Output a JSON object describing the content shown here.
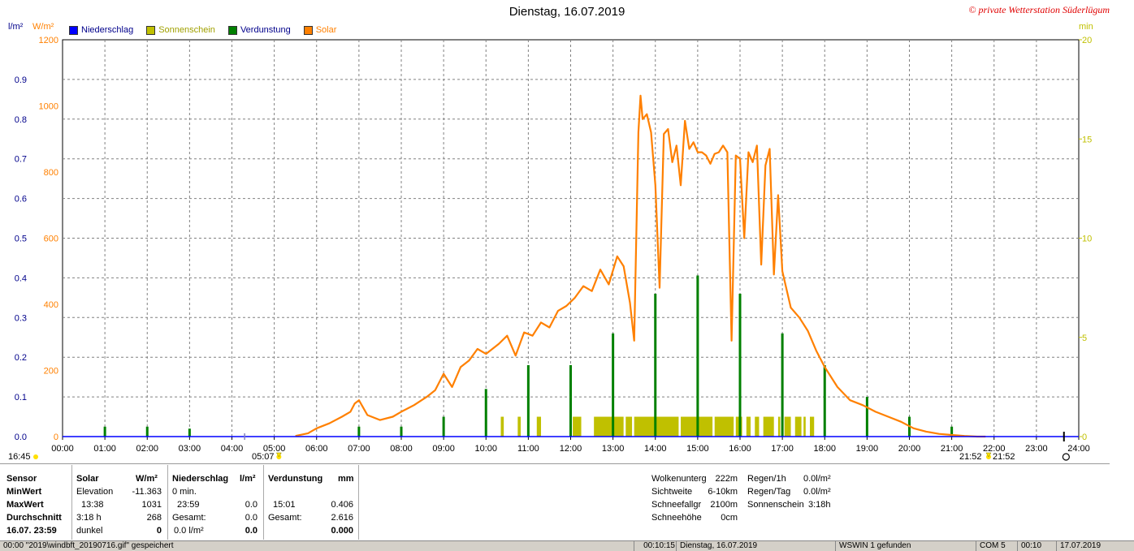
{
  "header": {
    "title": "Dienstag, 16.07.2019",
    "copyright": "© private Wetterstation Süderlügum"
  },
  "units": {
    "left1": "l/m²",
    "left2": "W/m²",
    "right": "min"
  },
  "legend": [
    {
      "label": "Niederschlag",
      "color": "#0000ff"
    },
    {
      "label": "Sonnenschein",
      "color": "#c0c000"
    },
    {
      "label": "Verdunstung",
      "color": "#008000"
    },
    {
      "label": "Solar",
      "color": "#ff8000"
    }
  ],
  "chart_data": {
    "type": "line",
    "x_ticks": [
      "00:00",
      "01:00",
      "02:00",
      "03:00",
      "04:00",
      "05:00",
      "06:00",
      "07:00",
      "08:00",
      "09:00",
      "10:00",
      "11:00",
      "12:00",
      "13:00",
      "14:00",
      "15:00",
      "16:00",
      "17:00",
      "18:00",
      "19:00",
      "20:00",
      "21:00",
      "22:00",
      "23:00",
      "24:00"
    ],
    "left_axis_precip": {
      "ticks": [
        "0.0",
        "0.1",
        "0.2",
        "0.3",
        "0.4",
        "0.5",
        "0.6",
        "0.7",
        "0.8",
        "0.9"
      ],
      "range": [
        0,
        1.0
      ]
    },
    "left_axis_solar": {
      "ticks": [
        "0",
        "200",
        "400",
        "600",
        "800",
        "1000",
        "1200"
      ],
      "range": [
        0,
        1200
      ]
    },
    "right_axis_min": {
      "ticks": [
        "0",
        "5",
        "10",
        "15",
        "20"
      ],
      "range": [
        0,
        20
      ]
    },
    "series": [
      {
        "name": "Solar",
        "unit": "W/m²",
        "color": "#ff8000",
        "x_hours": [
          5.5,
          5.8,
          6.0,
          6.3,
          6.6,
          6.8,
          6.9,
          7.0,
          7.2,
          7.5,
          7.8,
          8.0,
          8.3,
          8.6,
          8.8,
          9.0,
          9.2,
          9.4,
          9.6,
          9.8,
          10.0,
          10.3,
          10.5,
          10.7,
          10.9,
          11.1,
          11.3,
          11.5,
          11.7,
          11.9,
          12.1,
          12.3,
          12.5,
          12.7,
          12.9,
          13.1,
          13.25,
          13.4,
          13.5,
          13.6,
          13.65,
          13.7,
          13.8,
          13.9,
          14.0,
          14.1,
          14.2,
          14.3,
          14.4,
          14.5,
          14.6,
          14.7,
          14.8,
          14.9,
          15.0,
          15.1,
          15.2,
          15.3,
          15.4,
          15.5,
          15.6,
          15.7,
          15.8,
          15.9,
          16.0,
          16.1,
          16.2,
          16.3,
          16.4,
          16.5,
          16.6,
          16.7,
          16.8,
          16.9,
          17.0,
          17.2,
          17.4,
          17.6,
          17.8,
          18.0,
          18.3,
          18.6,
          18.9,
          19.2,
          19.5,
          19.8,
          20.1,
          20.4,
          20.7,
          21.0,
          21.3,
          21.6,
          21.8
        ],
        "values": [
          2,
          10,
          25,
          40,
          60,
          75,
          100,
          110,
          65,
          50,
          60,
          75,
          95,
          120,
          140,
          190,
          150,
          210,
          230,
          265,
          250,
          280,
          305,
          245,
          315,
          305,
          345,
          330,
          380,
          395,
          420,
          455,
          440,
          505,
          460,
          545,
          515,
          405,
          290,
          920,
          1031,
          960,
          975,
          920,
          760,
          450,
          915,
          930,
          830,
          880,
          760,
          955,
          870,
          890,
          860,
          860,
          850,
          825,
          855,
          860,
          880,
          860,
          290,
          850,
          840,
          600,
          860,
          830,
          880,
          520,
          820,
          870,
          490,
          730,
          500,
          390,
          360,
          320,
          260,
          210,
          150,
          110,
          95,
          75,
          60,
          45,
          25,
          15,
          8,
          5,
          2,
          0,
          0
        ]
      },
      {
        "name": "Verdunstung",
        "unit": "mm",
        "color": "#008000",
        "x_hours": [
          1.0,
          2.0,
          3.0,
          7.0,
          8.0,
          9.0,
          10.0,
          11.0,
          12.0,
          13.0,
          14.0,
          15.0,
          16.0,
          17.0,
          18.0,
          19.0,
          20.0,
          21.0
        ],
        "values": [
          0.025,
          0.025,
          0.02,
          0.025,
          0.025,
          0.05,
          0.12,
          0.18,
          0.18,
          0.26,
          0.36,
          0.406,
          0.36,
          0.26,
          0.18,
          0.1,
          0.05,
          0.025
        ]
      },
      {
        "name": "Sonnenschein",
        "unit": "min",
        "color": "#c0c000",
        "intervals": [
          [
            10.35,
            10.42
          ],
          [
            10.75,
            10.82
          ],
          [
            11.2,
            11.3
          ],
          [
            12.05,
            12.25
          ],
          [
            12.55,
            13.25
          ],
          [
            13.3,
            13.45
          ],
          [
            13.5,
            14.55
          ],
          [
            14.6,
            15.35
          ],
          [
            15.4,
            15.85
          ],
          [
            15.9,
            16.05
          ],
          [
            16.15,
            16.25
          ],
          [
            16.35,
            16.45
          ],
          [
            16.55,
            16.8
          ],
          [
            16.9,
            16.95
          ],
          [
            17.05,
            17.2
          ],
          [
            17.3,
            17.45
          ],
          [
            17.5,
            17.55
          ],
          [
            17.65,
            17.75
          ]
        ],
        "height_min": 1
      }
    ],
    "markers": {
      "left_time": "16:45",
      "sunrise": "05:07",
      "sunset_a": "21:52",
      "sunset_b": "21:52"
    }
  },
  "table": {
    "headers": {
      "sensor": "Sensor",
      "solar": "Solar",
      "solar_unit": "W/m²",
      "precip": "Niederschlag",
      "precip_unit": "l/m²",
      "evap": "Verdunstung",
      "evap_unit": "mm"
    },
    "rows": {
      "min": {
        "label": "MinWert",
        "solar_label": "Elevation",
        "solar_val": "-11.363",
        "precip_label": "0 min.",
        "precip_val": "",
        "evap_label": "",
        "evap_val": ""
      },
      "max": {
        "label": "MaxWert",
        "solar_label": "13:38",
        "solar_val": "1031",
        "precip_label": "23:59",
        "precip_val": "0.0",
        "evap_label": "15:01",
        "evap_val": "0.406"
      },
      "avg": {
        "label": "Durchschnitt",
        "solar_label": "3:18 h",
        "solar_val": "268",
        "precip_label": "Gesamt:",
        "precip_val": "0.0",
        "evap_label": "Gesamt:",
        "evap_val": "2.616"
      },
      "now": {
        "label": "16.07. 23:59",
        "solar_label": "dunkel",
        "solar_val": "0",
        "precip_label": "0.0 l/m²",
        "precip_val": "0.0",
        "evap_label": "",
        "evap_val": "0.000"
      }
    },
    "right": {
      "wolken_label": "Wolkenunterg",
      "wolken_val": "222m",
      "sicht_label": "Sichtweite",
      "sicht_val": "6-10km",
      "schneefall_label": "Schneefallgr",
      "schneefall_val": "2100m",
      "schneehoehe_label": "Schneehöhe",
      "schneehoehe_val": "0cm",
      "regen1h_label": "Regen/1h",
      "regen1h_val": "0.0l/m²",
      "regentag_label": "Regen/Tag",
      "regentag_val": "0.0l/m²",
      "sonne_label": "Sonnenschein",
      "sonne_val": "3:18h"
    }
  },
  "status": {
    "c1": "00:00 \"2019\\windbft_20190716.gif\" gespeichert",
    "c2": "00:10:15",
    "c3": "Dienstag, 16.07.2019",
    "c4": "WSWIN 1 gefunden",
    "c5": "COM 5",
    "c6": "00:10",
    "c7": "17.07.2019"
  }
}
